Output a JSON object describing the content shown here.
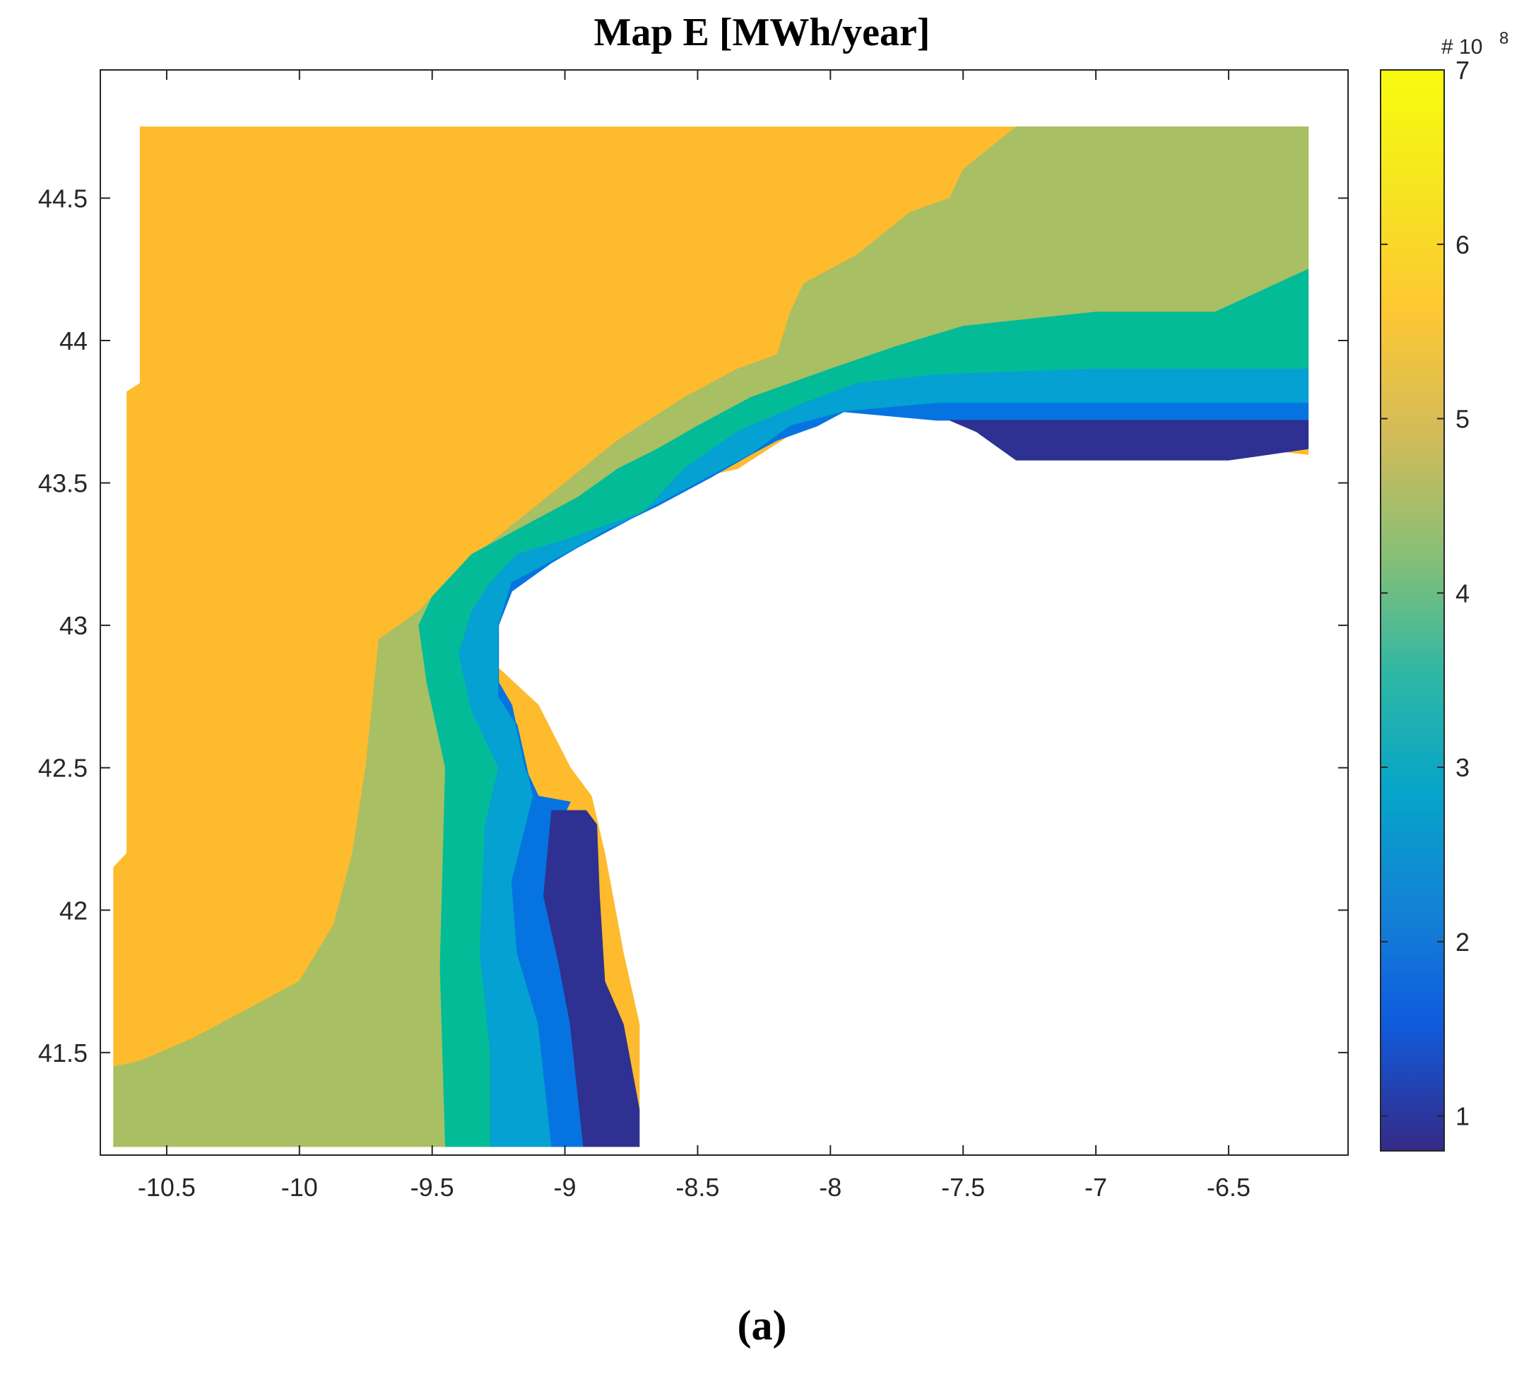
{
  "title": "Map E [MWh/year]",
  "caption": "(a)",
  "chart_data": {
    "type": "heatmap",
    "xlim": [
      -10.75,
      -6.05
    ],
    "ylim": [
      41.14,
      44.95
    ],
    "xticks": [
      "-10.5",
      "-10",
      "-9.5",
      "-9",
      "-8.5",
      "-8",
      "-7.5",
      "-7",
      "-6.5"
    ],
    "yticks": [
      "41.5",
      "42",
      "42.5",
      "43",
      "43.5",
      "44",
      "44.5"
    ],
    "colorbar": {
      "ticks": [
        "1",
        "2",
        "3",
        "4",
        "5",
        "6",
        "7"
      ],
      "min": 0.8,
      "max": 7.0,
      "exponent_label": "# 10",
      "exponent": "8",
      "colormap": "parula"
    },
    "levels": [
      {
        "value": 6.0,
        "color": "#FDBB2D"
      },
      {
        "value": 5.0,
        "color": "#A8BF63"
      },
      {
        "value": 4.0,
        "color": "#04BB97"
      },
      {
        "value": 3.0,
        "color": "#04A1D2"
      },
      {
        "value": 2.0,
        "color": "#0574E0"
      },
      {
        "value": 1.0,
        "color": "#2E3192"
      }
    ],
    "regions": [
      {
        "level": 0,
        "points": [
          [
            -10.7,
            41.17
          ],
          [
            -9.0,
            41.17
          ],
          [
            -8.72,
            41.17
          ],
          [
            -8.72,
            41.6
          ],
          [
            -8.78,
            41.85
          ],
          [
            -8.85,
            42.2
          ],
          [
            -8.9,
            42.4
          ],
          [
            -8.98,
            42.5
          ],
          [
            -9.1,
            42.72
          ],
          [
            -9.25,
            42.85
          ],
          [
            -9.28,
            43.1
          ],
          [
            -9.1,
            43.3
          ],
          [
            -8.8,
            43.4
          ],
          [
            -8.6,
            43.5
          ],
          [
            -8.35,
            43.55
          ],
          [
            -8.1,
            43.7
          ],
          [
            -7.9,
            43.78
          ],
          [
            -7.6,
            43.78
          ],
          [
            -7.35,
            43.72
          ],
          [
            -6.2,
            43.6
          ],
          [
            -6.2,
            44.75
          ],
          [
            -10.6,
            44.75
          ],
          [
            -10.6,
            43.85
          ],
          [
            -10.65,
            43.82
          ],
          [
            -10.65,
            42.2
          ],
          [
            -10.7,
            42.15
          ]
        ]
      },
      {
        "level": 1,
        "points": [
          [
            -10.7,
            41.17
          ],
          [
            -9.45,
            41.17
          ],
          [
            -9.47,
            41.8
          ],
          [
            -9.45,
            42.5
          ],
          [
            -9.52,
            42.8
          ],
          [
            -9.55,
            43.0
          ],
          [
            -9.5,
            43.1
          ],
          [
            -9.35,
            43.25
          ],
          [
            -9.15,
            43.35
          ],
          [
            -8.95,
            43.45
          ],
          [
            -8.8,
            43.55
          ],
          [
            -8.65,
            43.62
          ],
          [
            -8.5,
            43.7
          ],
          [
            -8.3,
            43.8
          ],
          [
            -8.0,
            43.9
          ],
          [
            -7.75,
            43.98
          ],
          [
            -7.5,
            44.05
          ],
          [
            -7.0,
            44.1
          ],
          [
            -6.55,
            44.1
          ],
          [
            -6.2,
            44.25
          ],
          [
            -6.2,
            44.75
          ],
          [
            -7.3,
            44.75
          ],
          [
            -7.5,
            44.6
          ],
          [
            -7.55,
            44.5
          ],
          [
            -7.7,
            44.45
          ],
          [
            -7.9,
            44.3
          ],
          [
            -8.1,
            44.2
          ],
          [
            -8.15,
            44.1
          ],
          [
            -8.2,
            43.95
          ],
          [
            -8.35,
            43.9
          ],
          [
            -8.55,
            43.8
          ],
          [
            -8.8,
            43.65
          ],
          [
            -9.0,
            43.5
          ],
          [
            -9.2,
            43.35
          ],
          [
            -9.4,
            43.2
          ],
          [
            -9.55,
            43.05
          ],
          [
            -9.7,
            42.95
          ],
          [
            -9.75,
            42.5
          ],
          [
            -9.8,
            42.2
          ],
          [
            -9.87,
            41.95
          ],
          [
            -10.0,
            41.75
          ],
          [
            -10.2,
            41.65
          ],
          [
            -10.4,
            41.55
          ],
          [
            -10.6,
            41.47
          ],
          [
            -10.7,
            41.45
          ]
        ]
      },
      {
        "level": 2,
        "points": [
          [
            -9.45,
            41.17
          ],
          [
            -9.28,
            41.17
          ],
          [
            -9.28,
            41.5
          ],
          [
            -9.32,
            41.85
          ],
          [
            -9.3,
            42.3
          ],
          [
            -9.25,
            42.5
          ],
          [
            -9.35,
            42.7
          ],
          [
            -9.4,
            42.9
          ],
          [
            -9.35,
            43.05
          ],
          [
            -9.28,
            43.15
          ],
          [
            -9.18,
            43.25
          ],
          [
            -9.0,
            43.3
          ],
          [
            -8.7,
            43.4
          ],
          [
            -8.55,
            43.55
          ],
          [
            -8.35,
            43.68
          ],
          [
            -8.1,
            43.78
          ],
          [
            -7.9,
            43.85
          ],
          [
            -7.6,
            43.88
          ],
          [
            -7.0,
            43.9
          ],
          [
            -6.2,
            43.9
          ],
          [
            -6.2,
            44.25
          ],
          [
            -6.55,
            44.1
          ],
          [
            -7.0,
            44.1
          ],
          [
            -7.5,
            44.05
          ],
          [
            -7.75,
            43.98
          ],
          [
            -8.0,
            43.9
          ],
          [
            -8.3,
            43.8
          ],
          [
            -8.5,
            43.7
          ],
          [
            -8.65,
            43.62
          ],
          [
            -8.8,
            43.55
          ],
          [
            -8.95,
            43.45
          ],
          [
            -9.15,
            43.35
          ],
          [
            -9.35,
            43.25
          ],
          [
            -9.5,
            43.1
          ],
          [
            -9.55,
            43.0
          ],
          [
            -9.52,
            42.8
          ],
          [
            -9.45,
            42.5
          ],
          [
            -9.47,
            41.8
          ]
        ]
      },
      {
        "level": 3,
        "points": [
          [
            -9.28,
            41.17
          ],
          [
            -9.05,
            41.17
          ],
          [
            -9.1,
            41.6
          ],
          [
            -9.18,
            41.85
          ],
          [
            -9.2,
            42.1
          ],
          [
            -9.12,
            42.4
          ],
          [
            -9.18,
            42.65
          ],
          [
            -9.25,
            42.75
          ],
          [
            -9.25,
            43.0
          ],
          [
            -9.2,
            43.15
          ],
          [
            -9.0,
            43.25
          ],
          [
            -8.8,
            43.35
          ],
          [
            -8.6,
            43.45
          ],
          [
            -8.4,
            43.55
          ],
          [
            -8.2,
            43.65
          ],
          [
            -8.05,
            43.7
          ],
          [
            -7.95,
            43.75
          ],
          [
            -7.6,
            43.78
          ],
          [
            -7.0,
            43.78
          ],
          [
            -6.2,
            43.78
          ],
          [
            -6.2,
            43.9
          ],
          [
            -7.0,
            43.9
          ],
          [
            -7.6,
            43.88
          ],
          [
            -7.9,
            43.85
          ],
          [
            -8.1,
            43.78
          ],
          [
            -8.35,
            43.68
          ],
          [
            -8.55,
            43.55
          ],
          [
            -8.7,
            43.4
          ],
          [
            -9.0,
            43.3
          ],
          [
            -9.18,
            43.25
          ],
          [
            -9.28,
            43.15
          ],
          [
            -9.35,
            43.05
          ],
          [
            -9.4,
            42.9
          ],
          [
            -9.35,
            42.7
          ],
          [
            -9.25,
            42.5
          ],
          [
            -9.3,
            42.3
          ],
          [
            -9.32,
            41.85
          ],
          [
            -9.28,
            41.5
          ]
        ]
      },
      {
        "level": 4,
        "points": [
          [
            -9.05,
            41.17
          ],
          [
            -8.93,
            41.17
          ],
          [
            -8.95,
            41.6
          ],
          [
            -9.0,
            41.8
          ],
          [
            -9.05,
            42.05
          ],
          [
            -9.02,
            42.3
          ],
          [
            -8.98,
            42.38
          ],
          [
            -9.1,
            42.4
          ],
          [
            -9.15,
            42.5
          ],
          [
            -9.2,
            42.72
          ],
          [
            -9.25,
            42.8
          ],
          [
            -9.25,
            43.0
          ],
          [
            -9.2,
            43.12
          ],
          [
            -9.05,
            43.22
          ],
          [
            -8.85,
            43.33
          ],
          [
            -8.65,
            43.42
          ],
          [
            -8.45,
            43.52
          ],
          [
            -8.3,
            43.6
          ],
          [
            -8.15,
            43.7
          ],
          [
            -7.95,
            43.75
          ],
          [
            -7.6,
            43.72
          ],
          [
            -7.0,
            43.72
          ],
          [
            -6.2,
            43.72
          ],
          [
            -6.2,
            43.78
          ],
          [
            -7.0,
            43.78
          ],
          [
            -7.6,
            43.78
          ],
          [
            -7.95,
            43.75
          ],
          [
            -8.05,
            43.7
          ],
          [
            -8.2,
            43.65
          ],
          [
            -8.4,
            43.55
          ],
          [
            -8.6,
            43.45
          ],
          [
            -8.8,
            43.35
          ],
          [
            -9.0,
            43.25
          ],
          [
            -9.2,
            43.15
          ],
          [
            -9.25,
            43.0
          ],
          [
            -9.25,
            42.75
          ],
          [
            -9.18,
            42.65
          ],
          [
            -9.12,
            42.4
          ],
          [
            -9.2,
            42.1
          ],
          [
            -9.18,
            41.85
          ],
          [
            -9.1,
            41.6
          ]
        ]
      },
      {
        "level": 5,
        "points": [
          [
            -8.93,
            41.17
          ],
          [
            -8.72,
            41.17
          ],
          [
            -8.72,
            41.3
          ],
          [
            -8.78,
            41.6
          ],
          [
            -8.85,
            41.75
          ],
          [
            -8.87,
            42.05
          ],
          [
            -8.88,
            42.3
          ],
          [
            -8.92,
            42.35
          ],
          [
            -9.05,
            42.35
          ],
          [
            -9.08,
            42.05
          ],
          [
            -9.02,
            41.8
          ],
          [
            -8.98,
            41.6
          ]
        ]
      },
      {
        "level": 5,
        "points": [
          [
            -7.55,
            43.72
          ],
          [
            -7.45,
            43.68
          ],
          [
            -7.3,
            43.58
          ],
          [
            -6.5,
            43.58
          ],
          [
            -6.2,
            43.62
          ],
          [
            -6.2,
            43.72
          ],
          [
            -7.0,
            43.72
          ]
        ]
      }
    ]
  }
}
